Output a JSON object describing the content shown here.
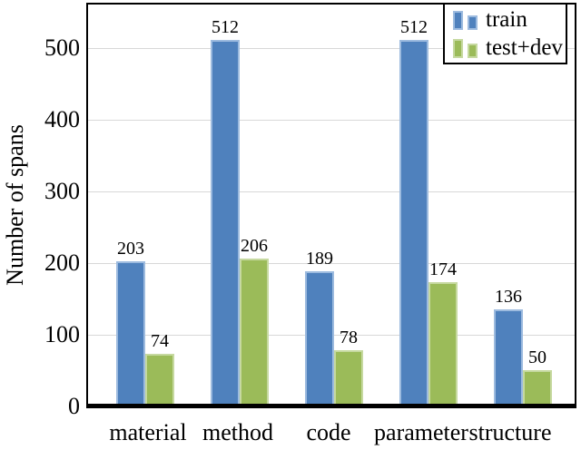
{
  "figure": {
    "background": "#ffffff",
    "axis_color": "#000000",
    "gridline_color": "#d8d8d8"
  },
  "chart_data": {
    "type": "bar",
    "title": "",
    "xlabel": "",
    "ylabel": "Number of spans",
    "categories": [
      "material",
      "method",
      "code",
      "parameter",
      "structure"
    ],
    "series": [
      {
        "name": "train",
        "values": [
          203,
          512,
          189,
          512,
          136
        ],
        "fill": "#4F81BD",
        "border": "#9DBBDF"
      },
      {
        "name": "test+dev",
        "values": [
          74,
          206,
          78,
          174,
          50
        ],
        "fill": "#9BBB59",
        "border": "#C6D9A0"
      }
    ],
    "yticks": [
      0,
      100,
      200,
      300,
      400,
      500
    ],
    "ylim": [
      0,
      560
    ],
    "grid": true,
    "legend_position": "top-right",
    "bar_value_labels": true
  }
}
